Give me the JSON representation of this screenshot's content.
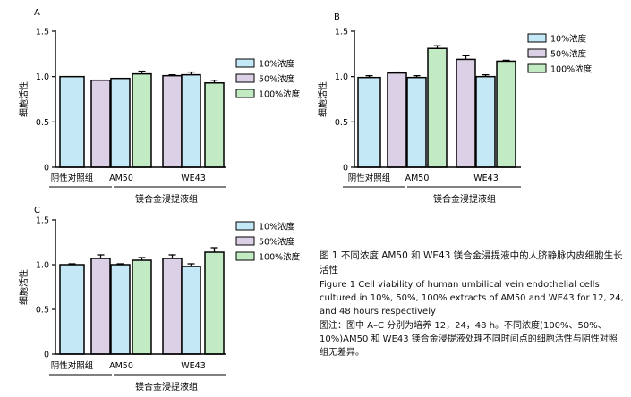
{
  "colors": {
    "c10": "#c5e8f7",
    "c50": "#dcd0e6",
    "c100": "#c3ebc3",
    "axis": "#000000"
  },
  "chart_data": [
    {
      "type": "bar",
      "panel_label": "A",
      "ylabel": "细胞活性",
      "xlabel": "镁合金浸提液组",
      "ylim": [
        0,
        1.5
      ],
      "yticks": [
        "0",
        "0.5",
        "1.0",
        "1.5"
      ],
      "legend": [
        "10%浓度",
        "50%浓度",
        "100%浓度"
      ],
      "legend_position": "right",
      "groups": [
        {
          "label": "阴性对照组",
          "bars": [
            {
              "series": 0,
              "value": 1.0,
              "err": 0.0
            }
          ]
        },
        {
          "label": "AM50",
          "bars": [
            {
              "series": 1,
              "value": 0.96,
              "err": 0.0
            },
            {
              "series": 0,
              "value": 0.98,
              "err": 0.0
            },
            {
              "series": 2,
              "value": 1.03,
              "err": 0.03
            }
          ]
        },
        {
          "label": "WE43",
          "bars": [
            {
              "series": 1,
              "value": 1.01,
              "err": 0.01
            },
            {
              "series": 0,
              "value": 1.02,
              "err": 0.03
            },
            {
              "series": 2,
              "value": 0.93,
              "err": 0.03
            }
          ]
        }
      ]
    },
    {
      "type": "bar",
      "panel_label": "B",
      "ylabel": "细胞活性",
      "xlabel": "镁合金浸提液组",
      "ylim": [
        0,
        1.5
      ],
      "yticks": [
        "0",
        "0.5",
        "1.0",
        "1.5"
      ],
      "legend": [
        "10%浓度",
        "50%浓度",
        "100%浓度"
      ],
      "legend_position": "right",
      "groups": [
        {
          "label": "阴性对照组",
          "bars": [
            {
              "series": 0,
              "value": 0.99,
              "err": 0.02
            }
          ]
        },
        {
          "label": "AM50",
          "bars": [
            {
              "series": 1,
              "value": 1.04,
              "err": 0.01
            },
            {
              "series": 0,
              "value": 0.99,
              "err": 0.02
            },
            {
              "series": 2,
              "value": 1.31,
              "err": 0.03
            }
          ]
        },
        {
          "label": "WE43",
          "bars": [
            {
              "series": 1,
              "value": 1.19,
              "err": 0.04
            },
            {
              "series": 0,
              "value": 1.0,
              "err": 0.02
            },
            {
              "series": 2,
              "value": 1.17,
              "err": 0.01
            }
          ]
        }
      ]
    },
    {
      "type": "bar",
      "panel_label": "C",
      "ylabel": "细胞活性",
      "xlabel": "镁合金浸提液组",
      "ylim": [
        0,
        1.5
      ],
      "yticks": [
        "0",
        "0.5",
        "1.0",
        "1.5"
      ],
      "legend": [
        "10%浓度",
        "50%浓度",
        "100%浓度"
      ],
      "legend_position": "right",
      "groups": [
        {
          "label": "阴性对照组",
          "bars": [
            {
              "series": 0,
              "value": 1.0,
              "err": 0.01
            }
          ]
        },
        {
          "label": "AM50",
          "bars": [
            {
              "series": 1,
              "value": 1.07,
              "err": 0.04
            },
            {
              "series": 0,
              "value": 1.0,
              "err": 0.01
            },
            {
              "series": 2,
              "value": 1.05,
              "err": 0.03
            }
          ]
        },
        {
          "label": "WE43",
          "bars": [
            {
              "series": 1,
              "value": 1.07,
              "err": 0.04
            },
            {
              "series": 0,
              "value": 0.98,
              "err": 0.03
            },
            {
              "series": 2,
              "value": 1.14,
              "err": 0.05
            }
          ]
        }
      ]
    }
  ],
  "caption": {
    "title": "图 1   不同浓度 AM50 和 WE43 镁合金浸提液中的人脐静脉内皮细胞生长活性",
    "english": "Figure 1   Cell viability of human umbilical vein endothelial cells cultured in 10%, 50%, 100% extracts of AM50 and WE43 for 12, 24, and 48 hours respectively",
    "note": "图注：图中 A–C 分别为培养 12，24，48 h。不同浓度(100%、50%、10%)AM50 和 WE43 镁合金浸提液处理不同时间点的细胞活性与阴性对照组无差异。"
  }
}
